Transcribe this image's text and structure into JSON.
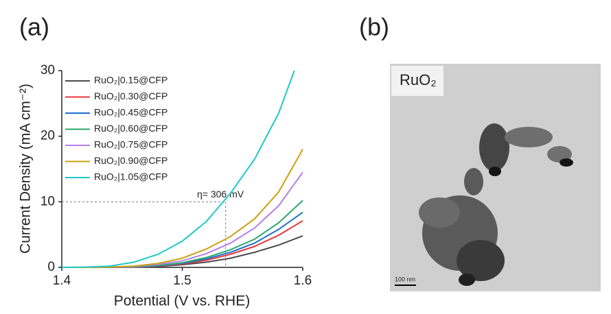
{
  "panels": [
    "(a)",
    "(b)"
  ],
  "chart_data": {
    "type": "line",
    "xlabel": "Potential (V vs. RHE)",
    "ylabel": "Current Density (mA cm⁻²)",
    "x": [
      1.4,
      1.42,
      1.44,
      1.46,
      1.48,
      1.5,
      1.52,
      1.54,
      1.56,
      1.58,
      1.6
    ],
    "xlim": [
      1.4,
      1.6
    ],
    "xticks": [
      1.4,
      1.5,
      1.6
    ],
    "ylim": [
      0,
      30
    ],
    "yticks": [
      0,
      10,
      20,
      30
    ],
    "legend": "upper-left",
    "series": [
      {
        "name": "RuO₂|0.15@CFP",
        "color": "#4a4a4a",
        "values": [
          0,
          0,
          0.01,
          0.05,
          0.15,
          0.4,
          0.8,
          1.4,
          2.3,
          3.4,
          4.8
        ]
      },
      {
        "name": "RuO₂|0.30@CFP",
        "color": "#e8373a",
        "values": [
          0,
          0,
          0.02,
          0.07,
          0.2,
          0.5,
          1.1,
          2.0,
          3.2,
          4.9,
          7.1
        ]
      },
      {
        "name": "RuO₂|0.45@CFP",
        "color": "#1f6fd1",
        "values": [
          0,
          0,
          0.02,
          0.08,
          0.25,
          0.6,
          1.3,
          2.3,
          3.7,
          5.8,
          8.4
        ]
      },
      {
        "name": "RuO₂|0.60@CFP",
        "color": "#2aa86b",
        "values": [
          0,
          0,
          0.02,
          0.1,
          0.3,
          0.7,
          1.5,
          2.7,
          4.3,
          6.8,
          10.2
        ]
      },
      {
        "name": "RuO₂|0.75@CFP",
        "color": "#b57ee8",
        "values": [
          0,
          0,
          0.03,
          0.15,
          0.45,
          1.0,
          2.1,
          3.7,
          6.0,
          9.4,
          14.5
        ]
      },
      {
        "name": "RuO₂|0.90@CFP",
        "color": "#c9a10f",
        "values": [
          0,
          0,
          0.05,
          0.2,
          0.6,
          1.4,
          2.8,
          4.7,
          7.4,
          11.5,
          18.0
        ]
      },
      {
        "name": "RuO₂|1.05@CFP",
        "color": "#1fc8c8",
        "x": [
          1.4,
          1.42,
          1.44,
          1.46,
          1.48,
          1.5,
          1.52,
          1.54,
          1.56,
          1.58,
          1.593
        ],
        "values": [
          0,
          0.05,
          0.2,
          0.8,
          2.0,
          4.0,
          7.0,
          11.3,
          16.5,
          23.5,
          30
        ]
      }
    ],
    "annotation": {
      "text": "η= 306 mV",
      "x": 1.536,
      "y": 10
    }
  },
  "image": {
    "label": "RuO₂",
    "scale_bar": "100 nm"
  }
}
